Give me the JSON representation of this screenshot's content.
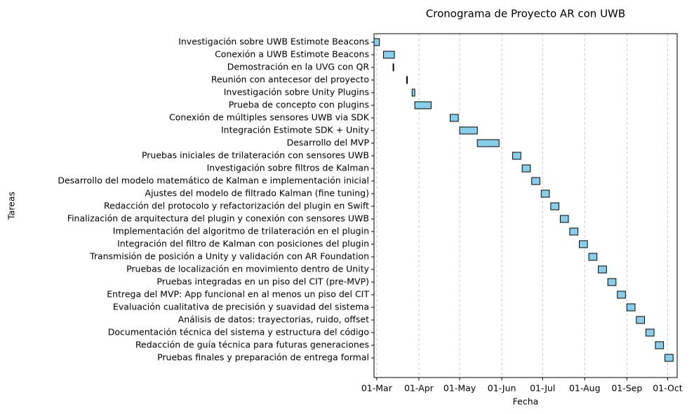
{
  "chart_data": {
    "type": "gantt",
    "title": "Cronograma de Proyecto AR con UWB",
    "x_label": "Fecha",
    "y_label": "Tareas",
    "categories": [
      "Investigación sobre UWB Estimote Beacons",
      "Conexión a UWB Estimote Beacons",
      "Demostración en la UVG con QR",
      "Reunión con antecesor del proyecto",
      "Investigación sobre Unity Plugins",
      "Prueba de concepto con plugins",
      "Conexión de múltiples sensores UWB via SDK",
      "Integración Estimote SDK + Unity",
      "Desarrollo del MVP",
      "Pruebas iniciales de trilateración con sensores UWB",
      "Investigación sobre filtros de Kalman",
      "Desarrollo del modelo matemático de Kalman e implementación inicial",
      "Ajustes del modelo de filtrado Kalman (fine tuning)",
      "Redacción del protocolo y refactorización del plugin en Swift",
      "Finalización de arquitectura del plugin y conexión con sensores UWB",
      "Implementación del algoritmo de trilateración en el plugin",
      "Integración del filtro de Kalman con posiciones del plugin",
      "Transmisión de posición a Unity y validación con AR Foundation",
      "Pruebas de localización en movimiento dentro de Unity",
      "Pruebas integradas en un piso del CIT (pre-MVP)",
      "Entrega del MVP: App funcional en al menos un piso del CIT",
      "Evaluación cualitativa de precisión y suavidad del sistema",
      "Análisis de datos: trayectorias, ruido, offset",
      "Documentación técnica del sistema y estructura del código",
      "Redacción de guía técnica para futuras generaciones",
      "Pruebas finales y preparación de entrega formal"
    ],
    "start": [
      -2,
      5,
      12,
      22,
      26,
      28,
      54,
      61,
      74,
      100,
      107,
      114,
      121,
      128,
      135,
      142,
      149,
      156,
      163,
      170,
      177,
      184,
      191,
      198,
      205,
      212
    ],
    "duration": [
      4,
      8,
      0.5,
      0.5,
      2,
      12,
      6,
      13,
      16,
      6,
      6,
      6,
      6,
      6,
      6,
      6,
      6,
      6,
      6,
      6,
      6,
      6,
      6,
      6,
      6,
      6
    ],
    "color": "#87ceeb",
    "edgecolor": "#000000",
    "xlim": [
      -2,
      221
    ],
    "xticks": [
      {
        "value": 0,
        "label": "01-Mar"
      },
      {
        "value": 31,
        "label": "01-Apr"
      },
      {
        "value": 61,
        "label": "01-May"
      },
      {
        "value": 92,
        "label": "01-Jun"
      },
      {
        "value": 122,
        "label": "01-Jul"
      },
      {
        "value": 153,
        "label": "01-Aug"
      },
      {
        "value": 184,
        "label": "01-Sep"
      },
      {
        "value": 214,
        "label": "01-Oct"
      }
    ],
    "grid": true
  }
}
